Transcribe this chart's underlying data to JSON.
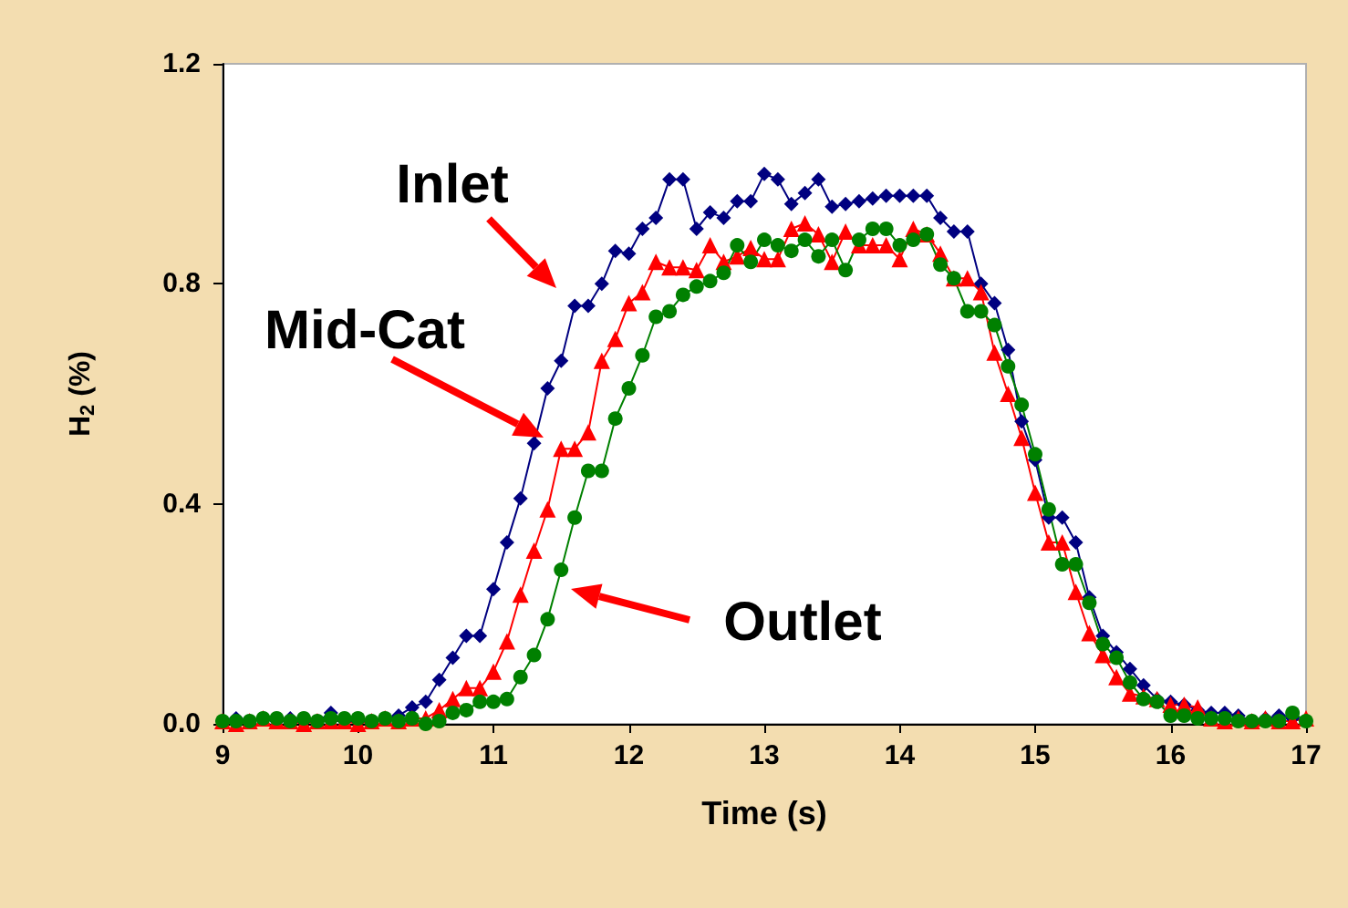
{
  "chart_data": {
    "type": "line",
    "xlabel": "Time (s)",
    "ylabel": "H$_{2}$ (%)",
    "x": [
      9.0,
      9.1,
      9.2,
      9.3,
      9.4,
      9.5,
      9.6,
      9.7,
      9.8,
      9.9,
      10.0,
      10.1,
      10.2,
      10.3,
      10.4,
      10.5,
      10.6,
      10.7,
      10.8,
      10.9,
      11.0,
      11.1,
      11.2,
      11.3,
      11.4,
      11.5,
      11.6,
      11.7,
      11.8,
      11.9,
      12.0,
      12.1,
      12.2,
      12.3,
      12.4,
      12.5,
      12.6,
      12.7,
      12.8,
      12.9,
      13.0,
      13.1,
      13.2,
      13.3,
      13.4,
      13.5,
      13.6,
      13.7,
      13.8,
      13.9,
      14.0,
      14.1,
      14.2,
      14.3,
      14.4,
      14.5,
      14.6,
      14.7,
      14.8,
      14.9,
      15.0,
      15.1,
      15.2,
      15.3,
      15.4,
      15.5,
      15.6,
      15.7,
      15.8,
      15.9,
      16.0,
      16.1,
      16.2,
      16.3,
      16.4,
      16.5,
      16.6,
      16.7,
      16.8,
      16.9,
      17.0
    ],
    "series": [
      {
        "color": "#000080",
        "marker": "diamond",
        "values": [
          0.005,
          0.01,
          0.005,
          0.01,
          0.005,
          0.01,
          0.005,
          0.005,
          0.02,
          0.005,
          0.005,
          0.005,
          0.01,
          0.015,
          0.03,
          0.04,
          0.08,
          0.12,
          0.16,
          0.16,
          0.245,
          0.33,
          0.41,
          0.51,
          0.61,
          0.66,
          0.76,
          0.76,
          0.8,
          0.86,
          0.855,
          0.9,
          0.92,
          0.99,
          0.99,
          0.9,
          0.93,
          0.92,
          0.95,
          0.95,
          1.0,
          0.99,
          0.945,
          0.965,
          0.99,
          0.94,
          0.945,
          0.95,
          0.955,
          0.96,
          0.96,
          0.96,
          0.96,
          0.92,
          0.895,
          0.895,
          0.8,
          0.765,
          0.68,
          0.55,
          0.48,
          0.375,
          0.375,
          0.33,
          0.23,
          0.16,
          0.13,
          0.1,
          0.07,
          0.045,
          0.04,
          0.035,
          0.025,
          0.02,
          0.02,
          0.015,
          0.005,
          0.01,
          0.015,
          0.01,
          0.005
        ]
      },
      {
        "color": "#ff0000",
        "marker": "triangle",
        "values": [
          0.005,
          0,
          0.005,
          0.01,
          0.005,
          0.005,
          0,
          0.005,
          0.005,
          0.005,
          0,
          0.005,
          0.01,
          0.005,
          0.01,
          0.01,
          0.025,
          0.045,
          0.065,
          0.065,
          0.095,
          0.15,
          0.235,
          0.315,
          0.39,
          0.5,
          0.5,
          0.53,
          0.66,
          0.7,
          0.765,
          0.785,
          0.84,
          0.83,
          0.83,
          0.825,
          0.87,
          0.84,
          0.85,
          0.865,
          0.845,
          0.845,
          0.9,
          0.91,
          0.89,
          0.84,
          0.895,
          0.87,
          0.87,
          0.87,
          0.845,
          0.9,
          0.89,
          0.855,
          0.81,
          0.81,
          0.785,
          0.675,
          0.6,
          0.52,
          0.42,
          0.33,
          0.33,
          0.24,
          0.165,
          0.125,
          0.085,
          0.055,
          0.05,
          0.045,
          0.035,
          0.035,
          0.03,
          0.01,
          0.005,
          0.01,
          0.005,
          0.01,
          0.005,
          0.005,
          0.01
        ]
      },
      {
        "color": "#008000",
        "marker": "circle",
        "values": [
          0.005,
          0.005,
          0.005,
          0.01,
          0.01,
          0.005,
          0.01,
          0.005,
          0.01,
          0.01,
          0.01,
          0.005,
          0.01,
          0.005,
          0.01,
          0.0,
          0.005,
          0.02,
          0.025,
          0.04,
          0.04,
          0.045,
          0.085,
          0.125,
          0.19,
          0.28,
          0.375,
          0.46,
          0.46,
          0.555,
          0.61,
          0.67,
          0.74,
          0.75,
          0.78,
          0.795,
          0.805,
          0.82,
          0.87,
          0.84,
          0.88,
          0.87,
          0.86,
          0.88,
          0.85,
          0.88,
          0.825,
          0.88,
          0.9,
          0.9,
          0.87,
          0.88,
          0.89,
          0.835,
          0.81,
          0.75,
          0.75,
          0.725,
          0.65,
          0.58,
          0.49,
          0.39,
          0.29,
          0.29,
          0.22,
          0.145,
          0.12,
          0.075,
          0.045,
          0.04,
          0.015,
          0.015,
          0.01,
          0.01,
          0.01,
          0.005,
          0.005,
          0.005,
          0.005,
          0.02,
          0.005
        ]
      }
    ],
    "xlim": [
      9,
      17
    ],
    "xticks": [
      9,
      10,
      11,
      12,
      13,
      14,
      15,
      16,
      17
    ],
    "ylim": [
      0,
      1.2
    ],
    "yticks": [
      {
        "value": 0,
        "label": "0.0"
      },
      {
        "value": 0.4,
        "label": "0.4"
      },
      {
        "value": 0.8,
        "label": "0.8"
      },
      {
        "value": 1.2,
        "label": "1.2"
      }
    ],
    "grid": false,
    "line_style": "solid",
    "annotations": [
      "Inlet",
      "Mid-Cat",
      "Outlet"
    ]
  }
}
